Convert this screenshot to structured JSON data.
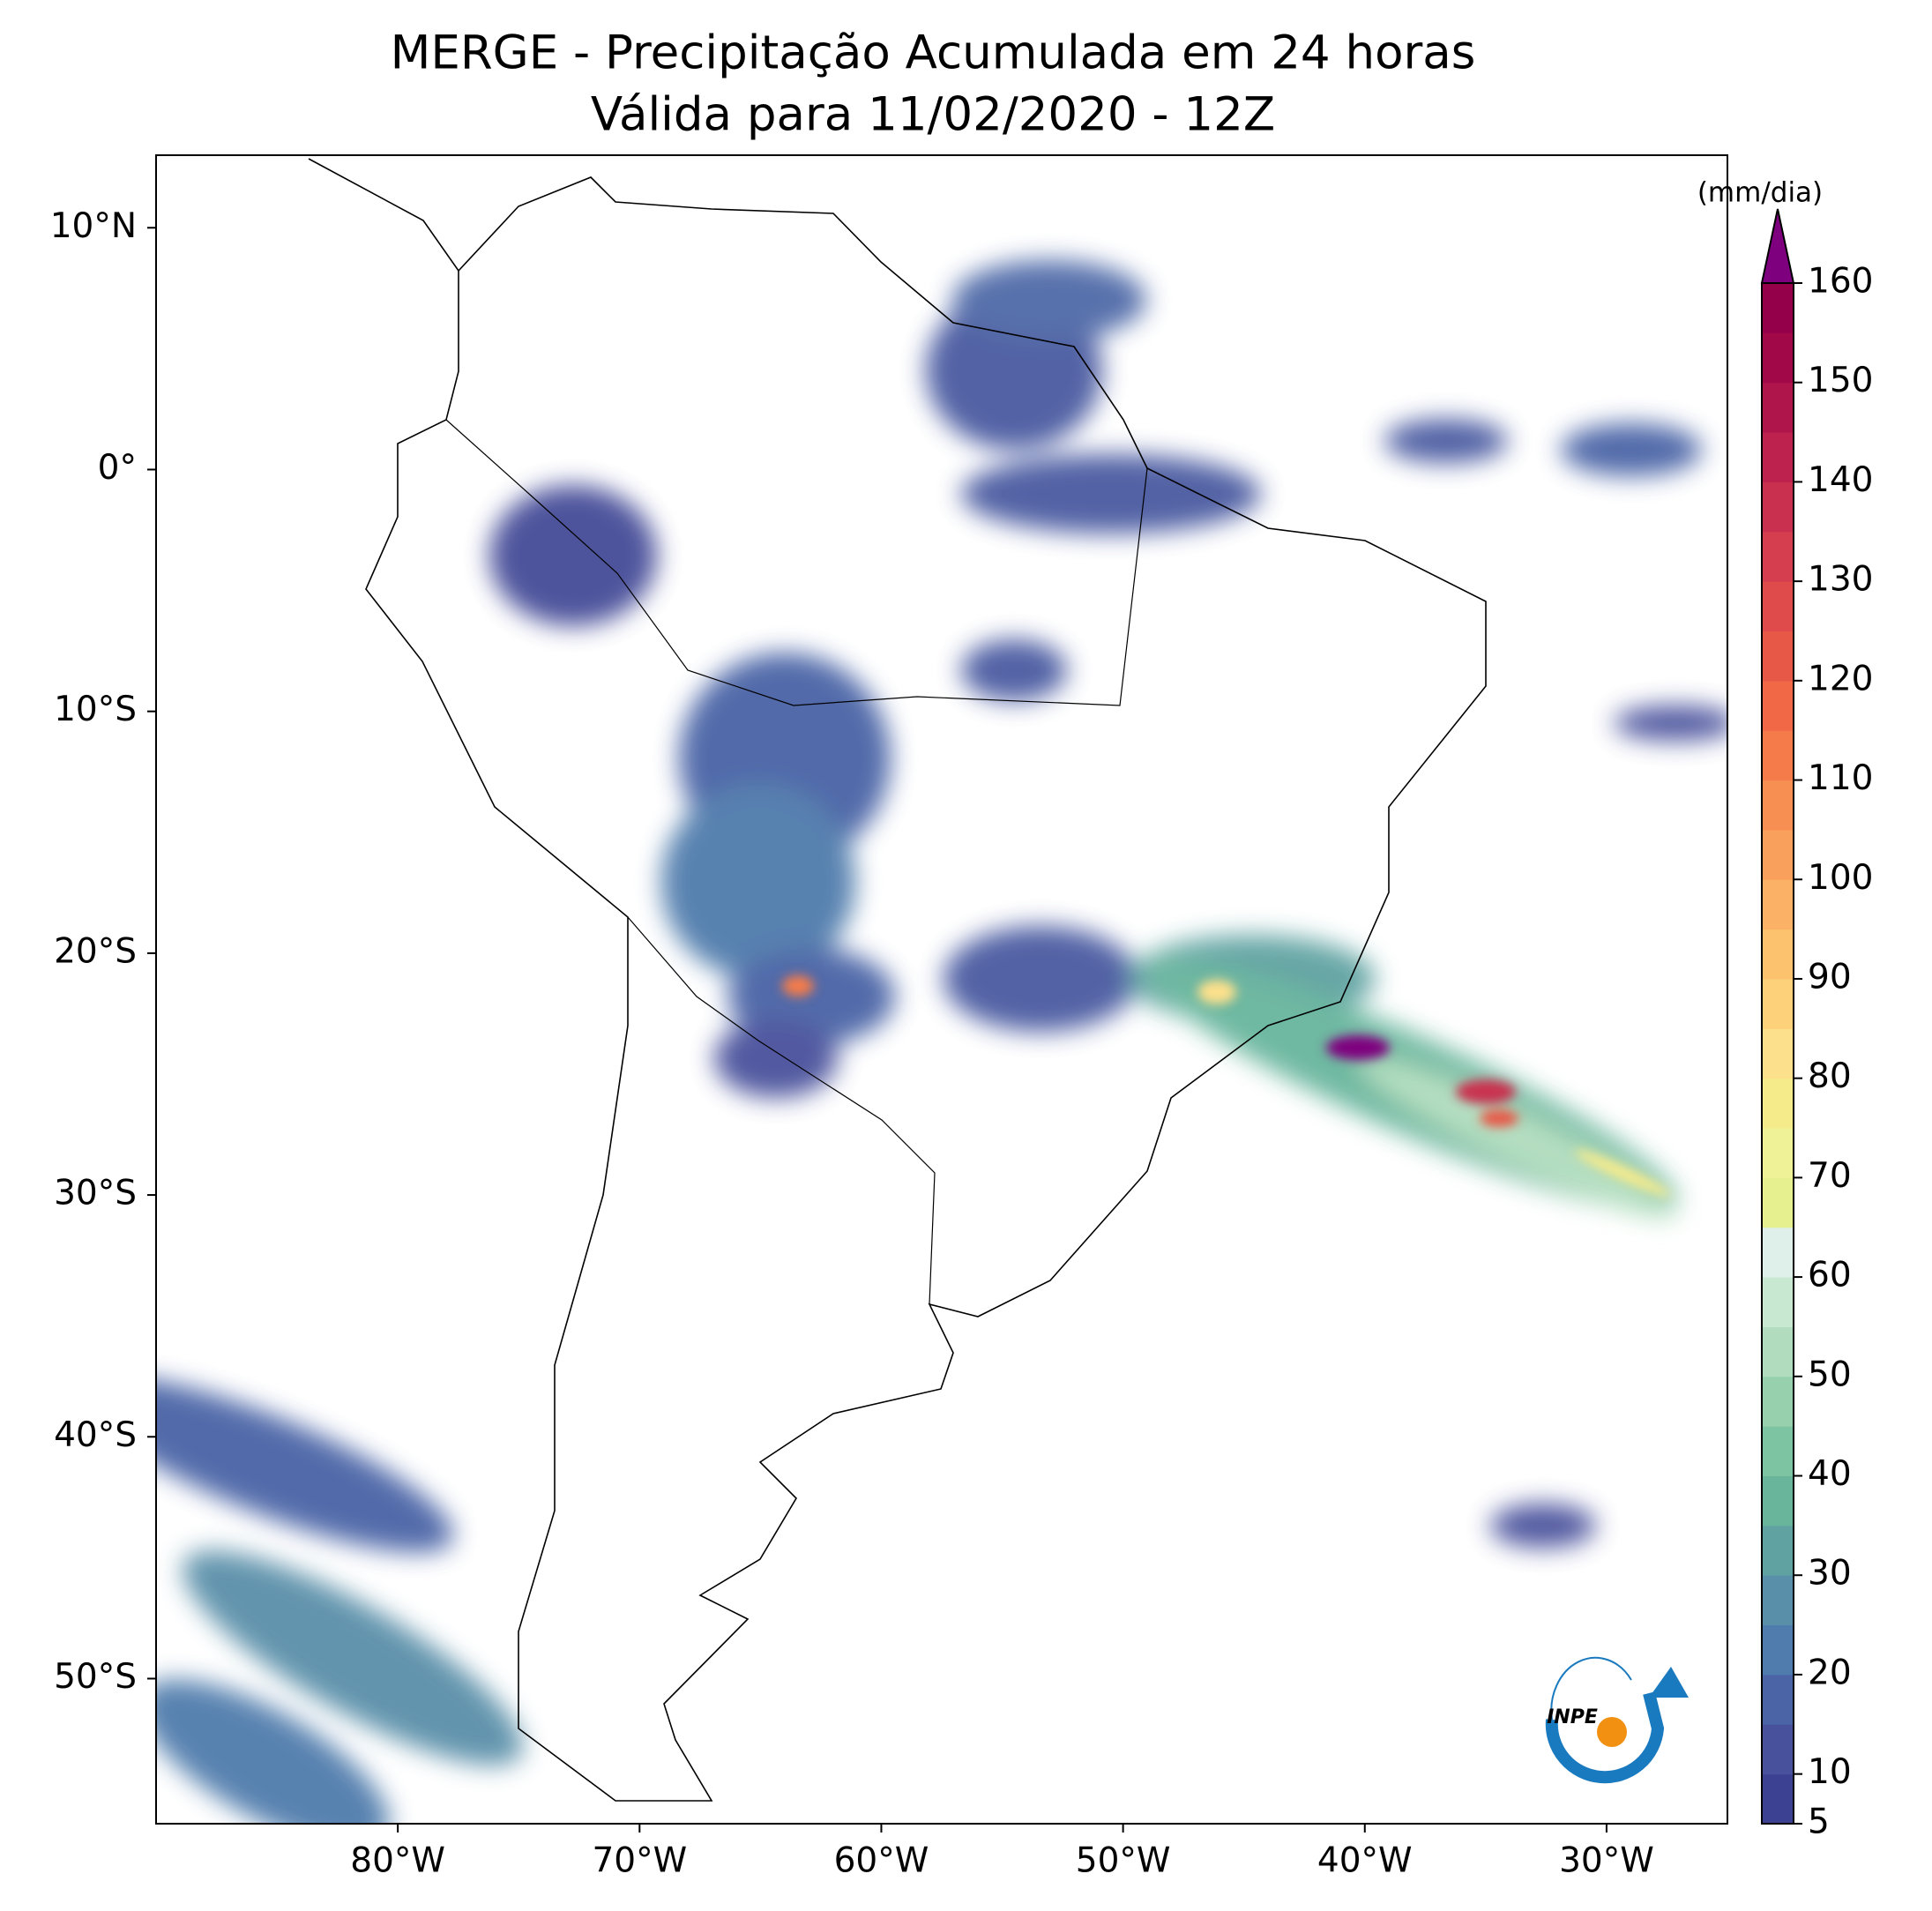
{
  "chart_data": {
    "type": "map",
    "title": "MERGE - Precipitação Acumulada em 24 horas",
    "subtitle": "Válida para 11/02/2020 - 12Z",
    "xlim": [
      -90,
      -25
    ],
    "ylim": [
      -56,
      13
    ],
    "xticks": [
      {
        "value": -80,
        "label": "80°W"
      },
      {
        "value": -70,
        "label": "70°W"
      },
      {
        "value": -60,
        "label": "60°W"
      },
      {
        "value": -50,
        "label": "50°W"
      },
      {
        "value": -40,
        "label": "40°W"
      },
      {
        "value": -30,
        "label": "30°W"
      }
    ],
    "yticks": [
      {
        "value": 10,
        "label": "10°N"
      },
      {
        "value": 0,
        "label": "0°"
      },
      {
        "value": -10,
        "label": "10°S"
      },
      {
        "value": -20,
        "label": "20°S"
      },
      {
        "value": -30,
        "label": "30°S"
      },
      {
        "value": -40,
        "label": "40°S"
      },
      {
        "value": -50,
        "label": "50°S"
      }
    ],
    "colorbar_label": "(mm/dia)",
    "clim": [
      5,
      160
    ],
    "cticks": [
      5,
      10,
      20,
      30,
      40,
      50,
      60,
      70,
      80,
      90,
      100,
      110,
      120,
      130,
      140,
      150,
      160
    ],
    "colors": [
      "#3d4191",
      "#48519b",
      "#4a64a6",
      "#4f7cac",
      "#5a8fa9",
      "#5fa2a1",
      "#68b59c",
      "#7dc4a2",
      "#96d0ac",
      "#b1ddbe",
      "#c9e8d2",
      "#dfefe9",
      "#e6f08f",
      "#eff296",
      "#f6eb8b",
      "#fde08b",
      "#fdd17a",
      "#fcc26d",
      "#fbb166",
      "#f9a05c",
      "#f78f52",
      "#f57b4a",
      "#f06846",
      "#e75846",
      "#df4b4a",
      "#d53e4f",
      "#c9304f",
      "#bc224d",
      "#af144b",
      "#a10848",
      "#94004a"
    ],
    "extend_color": "#7f007f",
    "logo_text": "INPE"
  }
}
